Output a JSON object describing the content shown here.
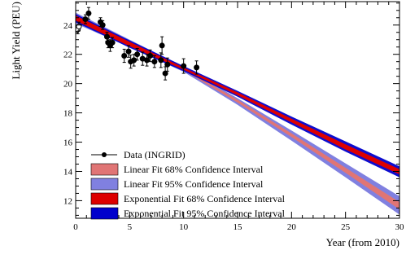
{
  "chart_data": {
    "type": "scatter",
    "title": "",
    "xlabel": "Year (from 2010)",
    "ylabel": "Light Yield (PEU)",
    "xlim": [
      0,
      30
    ],
    "ylim": [
      10.8,
      25.6
    ],
    "x_ticks": [
      0,
      5,
      10,
      15,
      20,
      25,
      30
    ],
    "y_ticks": [
      12,
      14,
      16,
      18,
      20,
      22,
      24
    ],
    "grid": false,
    "legend_position": "bottom-left",
    "data_series": {
      "name": "Data (INGRID)",
      "points": [
        {
          "x": 0.2,
          "y": 23.7,
          "err": 0.3,
          "open": true
        },
        {
          "x": 0.3,
          "y": 23.9,
          "err": 0.3,
          "open": true
        },
        {
          "x": 0.9,
          "y": 24.4,
          "err": 0.3
        },
        {
          "x": 1.2,
          "y": 24.8,
          "err": 0.4
        },
        {
          "x": 2.3,
          "y": 24.2,
          "err": 0.3
        },
        {
          "x": 2.5,
          "y": 24.0,
          "err": 0.3
        },
        {
          "x": 2.9,
          "y": 23.2,
          "err": 0.3
        },
        {
          "x": 3.0,
          "y": 22.8,
          "err": 0.35
        },
        {
          "x": 3.2,
          "y": 22.6,
          "err": 0.4
        },
        {
          "x": 3.4,
          "y": 22.8,
          "err": 0.35
        },
        {
          "x": 4.5,
          "y": 21.9,
          "err": 0.45
        },
        {
          "x": 4.9,
          "y": 22.2,
          "err": 0.4
        },
        {
          "x": 5.1,
          "y": 21.5,
          "err": 0.45
        },
        {
          "x": 5.4,
          "y": 21.6,
          "err": 0.4
        },
        {
          "x": 5.7,
          "y": 22.0,
          "err": 0.4
        },
        {
          "x": 6.2,
          "y": 21.7,
          "err": 0.45
        },
        {
          "x": 6.6,
          "y": 21.6,
          "err": 0.4
        },
        {
          "x": 6.9,
          "y": 21.9,
          "err": 0.4
        },
        {
          "x": 7.3,
          "y": 21.5,
          "err": 0.4
        },
        {
          "x": 7.9,
          "y": 21.6,
          "err": 0.5
        },
        {
          "x": 8.0,
          "y": 22.6,
          "err": 0.6
        },
        {
          "x": 8.3,
          "y": 20.7,
          "err": 0.45
        },
        {
          "x": 8.5,
          "y": 21.3,
          "err": 0.45
        },
        {
          "x": 10.0,
          "y": 21.2,
          "err": 0.5
        },
        {
          "x": 11.2,
          "y": 21.1,
          "err": 0.45
        }
      ]
    },
    "bands": {
      "x": [
        0,
        5,
        10,
        15,
        20,
        25,
        30
      ],
      "linear_95": {
        "name": "Linear Fit 95% Confidence Interval",
        "color": "#8080e0",
        "lower": [
          24.1,
          22.5,
          20.8,
          18.55,
          16.1,
          13.6,
          11.05
        ],
        "upper": [
          24.85,
          23.0,
          21.15,
          19.0,
          16.8,
          14.55,
          12.3
        ]
      },
      "linear_68": {
        "name": "Linear Fit 68% Confidence Interval",
        "color": "#e07575",
        "lower": [
          24.25,
          22.6,
          20.9,
          18.7,
          16.35,
          13.9,
          11.4
        ],
        "upper": [
          24.7,
          22.9,
          21.05,
          18.9,
          16.6,
          14.25,
          11.9
        ]
      },
      "exp_95": {
        "name": "Exponential Fit 95% Confidence Interval",
        "color": "#0000cc",
        "lower": [
          24.2,
          22.45,
          20.85,
          19.1,
          17.2,
          15.35,
          13.6
        ],
        "upper": [
          24.75,
          22.95,
          21.2,
          19.5,
          17.75,
          16.05,
          14.35
        ]
      },
      "exp_68": {
        "name": "Exponential Fit 68% Confidence Interval",
        "color": "#dd0000",
        "lower": [
          24.3,
          22.55,
          20.95,
          19.2,
          17.35,
          15.5,
          13.8
        ],
        "upper": [
          24.65,
          22.85,
          21.1,
          19.4,
          17.6,
          15.85,
          14.15
        ]
      }
    },
    "legend_order": [
      "data_series",
      "linear_68",
      "linear_95",
      "exp_68",
      "exp_95"
    ]
  }
}
